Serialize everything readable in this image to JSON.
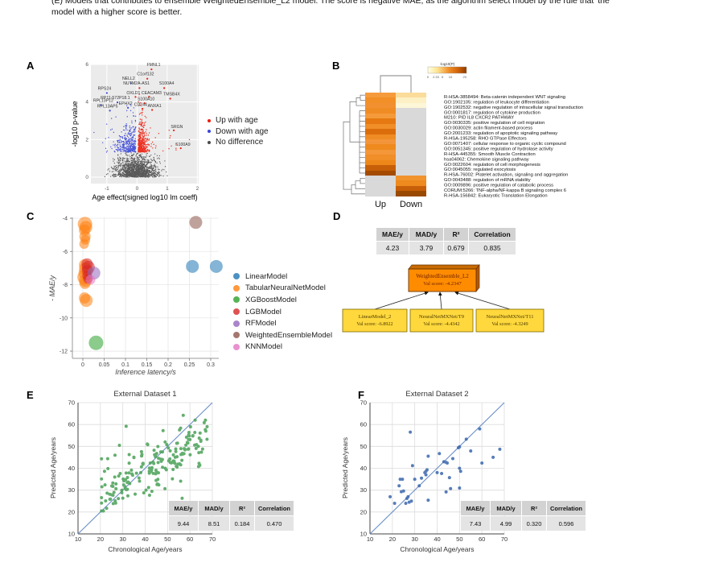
{
  "caption": {
    "line1": "(E) Models that contributes to ensemble WeightedEnsemble_L2 model. The score is negative MAE, as the algorithm select model by the rule that 'the",
    "line2": "model with a higher score is better."
  },
  "figure_labels": {
    "a": "A",
    "b": "B",
    "c": "C",
    "d": "D",
    "e": "E",
    "f": "F"
  },
  "chart_data": [
    {
      "id": "A",
      "type": "scatter",
      "subtype": "volcano",
      "xlabel": "Age effect(signed log10 lm coeff)",
      "ylabel": "-log10 p-value",
      "xticks": [
        -1,
        0,
        1,
        2
      ],
      "yticks": [
        6,
        4,
        2,
        0
      ],
      "xlim": [
        -1.53,
        2.05
      ],
      "ylim": [
        -0.34,
        6
      ],
      "colors": {
        "up": "#ed1d0e",
        "down": "#3b47d6",
        "none": "#4a4a4a",
        "bg": "#ebebeb"
      },
      "legend": [
        {
          "label": "Up with age",
          "key": "up"
        },
        {
          "label": "Down with age",
          "key": "down"
        },
        {
          "label": "No difference",
          "key": "none"
        }
      ],
      "cloud": {
        "seed": 42,
        "grey_n": 1500,
        "up_n": 430,
        "down_n": 380,
        "threshold": 1.33
      },
      "genes": [
        {
          "name": "FMNL1",
          "lx": 0.55,
          "ly": 5.92,
          "px": 0.48,
          "py": 5.74,
          "g": "up"
        },
        {
          "name": "C1orf132",
          "lx": 0.28,
          "ly": 5.42,
          "px": 0.34,
          "py": 5.24,
          "g": "up"
        },
        {
          "name": "NELL2",
          "lx": -0.28,
          "ly": 5.18,
          "px": -0.2,
          "py": 5.0,
          "g": "down"
        },
        {
          "name": "NUTM2A-AS1",
          "lx": -0.02,
          "ly": 4.92,
          "px": 0.08,
          "py": 4.74,
          "g": "up"
        },
        {
          "name": "S100A4",
          "lx": 0.98,
          "ly": 4.92,
          "px": 0.9,
          "py": 4.74,
          "g": "up"
        },
        {
          "name": "RPS24",
          "lx": -1.08,
          "ly": 4.65,
          "px": -1.0,
          "py": 4.48,
          "g": "down"
        },
        {
          "name": "OXLD1",
          "lx": -0.12,
          "ly": 4.42,
          "px": -0.05,
          "py": 4.27,
          "g": "up"
        },
        {
          "name": "CEACAM3",
          "lx": 0.48,
          "ly": 4.42,
          "px": 0.4,
          "py": 4.28,
          "g": "up"
        },
        {
          "name": "TMSB4X",
          "lx": 1.15,
          "ly": 4.35,
          "px": 1.1,
          "py": 4.18,
          "g": "up"
        },
        {
          "name": "RP11-572P18.1",
          "lx": -0.72,
          "ly": 4.15,
          "px": -0.65,
          "py": 3.98,
          "g": "down"
        },
        {
          "name": "S100A10",
          "lx": 0.3,
          "ly": 4.1,
          "px": 0.25,
          "py": 3.94,
          "g": "up"
        },
        {
          "name": "RPL13P12",
          "lx": -1.12,
          "ly": 4.0,
          "px": -1.2,
          "py": 3.84,
          "g": "down"
        },
        {
          "name": "EPHX2",
          "lx": -0.38,
          "ly": 3.85,
          "px": -0.3,
          "py": 3.69,
          "g": "down"
        },
        {
          "name": "CD244",
          "lx": 0.12,
          "ly": 3.8,
          "px": 0.18,
          "py": 3.64,
          "g": "up"
        },
        {
          "name": "ANXA1",
          "lx": 0.58,
          "ly": 3.72,
          "px": 0.5,
          "py": 3.58,
          "g": "up"
        },
        {
          "name": "RPL13AP5",
          "lx": -0.98,
          "ly": 3.7,
          "px": -0.9,
          "py": 3.54,
          "g": "down"
        },
        {
          "name": "SRGN",
          "lx": 1.32,
          "ly": 2.62,
          "px": 1.22,
          "py": 2.49,
          "g": "up"
        },
        {
          "name": "S100A9",
          "lx": 1.52,
          "ly": 1.68,
          "px": 1.45,
          "py": 1.54,
          "g": "up"
        }
      ]
    },
    {
      "id": "B",
      "type": "heatmap",
      "col_labels": [
        "Up",
        "Down"
      ],
      "legend_title": "-log10(P)",
      "legend_ticks": [
        "0",
        "2.33",
        "5",
        "10",
        "20"
      ],
      "na_color": "#d9d9d9",
      "rows": [
        {
          "name": "R-HSA-3858494: Beta-catenin independent WNT signaling",
          "up": "#f59b3c",
          "down": "#fbdc9a"
        },
        {
          "name": "GO:1902105: regulation of leukocyte differentiation",
          "up": "#f28f27",
          "down": "#fdf0c4"
        },
        {
          "name": "GO:1902532: negative regulation of intracellular signal transduction",
          "up": "#f29030",
          "down": "#fdf6d7"
        },
        {
          "name": "GO:0001817: regulation of cytokine production",
          "up": "#f08c24",
          "down": "#d9d9d9"
        },
        {
          "name": "M210: PID IL8 CXCR2 PATHWAY",
          "up": "#f49a3a",
          "down": "#d9d9d9"
        },
        {
          "name": "GO:0030335: positive regulation of cell migration",
          "up": "#e67911",
          "down": "#d9d9d9"
        },
        {
          "name": "GO:0030029: actin filament-based process",
          "up": "#f08e28",
          "down": "#d9d9d9"
        },
        {
          "name": "GO:2001233: regulation of apoptotic signaling pathway",
          "up": "#db6e0b",
          "down": "#d9d9d9"
        },
        {
          "name": "R-HSA-195258: RHO GTPase Effectors",
          "up": "#ef8c24",
          "down": "#d9d9d9"
        },
        {
          "name": "GO:0071407: cellular response to organic cyclic compound",
          "up": "#f2953a",
          "down": "#d9d9d9"
        },
        {
          "name": "GO:0051345: positive regulation of hydrolase activity",
          "up": "#ee8a1e",
          "down": "#d9d9d9"
        },
        {
          "name": "R-HSA-445355: Smooth Muscle Contraction",
          "up": "#f39739",
          "down": "#d9d9d9"
        },
        {
          "name": "hsa04062: Chemokine signaling pathway",
          "up": "#f08e28",
          "down": "#d9d9d9"
        },
        {
          "name": "GO:0022604: regulation of cell morphogenesis",
          "up": "#ed8719",
          "down": "#d9d9d9"
        },
        {
          "name": "GO:0045055: regulated exocytosis",
          "up": "#c65f08",
          "down": "#d9d9d9"
        },
        {
          "name": "R-HSA-76002: Platelet activation, signaling and aggregation",
          "up": "#a54b00",
          "down": "#d9d9d9"
        },
        {
          "name": "GO:0043488: regulation of mRNA stability",
          "up": "#d9d9d9",
          "down": "#f0932c"
        },
        {
          "name": "GO:0009896: positive regulation of catabolic process",
          "up": "#d9d9d9",
          "down": "#ee8a1e"
        },
        {
          "name": "CORUM:5266: TNF-alpha/NF-kappa B signaling complex 6",
          "up": "#d9d9d9",
          "down": "#c65f08"
        },
        {
          "name": "R-HSA-156842: Eukaryotic Translation Elongation",
          "up": "#d9d9d9",
          "down": "#9a4a00"
        }
      ]
    },
    {
      "id": "C",
      "type": "scatter",
      "xlabel": "Inference latency/s",
      "ylabel": "- MAE/y",
      "xticks": [
        "0",
        "0.05",
        "0.1",
        "0.15",
        "0.2",
        "0.25",
        "0.3"
      ],
      "yticks": [
        -4,
        -6,
        -8,
        -10,
        -12
      ],
      "xlim": [
        -0.025,
        0.32
      ],
      "ylim": [
        -12.45,
        -3.9
      ],
      "models": [
        {
          "label": "LinearModel",
          "color": "#1f77b4"
        },
        {
          "label": "TabularNeuralNetModel",
          "color": "#ff7f0e"
        },
        {
          "label": "XGBoostModel",
          "color": "#2ca02c"
        },
        {
          "label": "LGBModel",
          "color": "#d62728"
        },
        {
          "label": "RFModel",
          "color": "#9467bd"
        },
        {
          "label": "WeightedEnsembleModel",
          "color": "#8c564b"
        },
        {
          "label": "KNNModel",
          "color": "#e377c2"
        }
      ],
      "points": [
        {
          "m": 1,
          "x": 0.005,
          "y": -4.35,
          "r": 9
        },
        {
          "m": 1,
          "x": 0.007,
          "y": -4.55,
          "r": 8
        },
        {
          "m": 1,
          "x": 0.004,
          "y": -4.72,
          "r": 7
        },
        {
          "m": 1,
          "x": 0.005,
          "y": -5.1,
          "r": 7
        },
        {
          "m": 1,
          "x": 0.006,
          "y": -5.3,
          "r": 6
        },
        {
          "m": 1,
          "x": 0.003,
          "y": -5.55,
          "r": 6
        },
        {
          "m": 1,
          "x": 0.004,
          "y": -6.8,
          "r": 7
        },
        {
          "m": 1,
          "x": 0.006,
          "y": -7.05,
          "r": 8
        },
        {
          "m": 1,
          "x": 0.005,
          "y": -7.3,
          "r": 8
        },
        {
          "m": 1,
          "x": 0.004,
          "y": -7.55,
          "r": 9
        },
        {
          "m": 1,
          "x": 0.006,
          "y": -7.75,
          "r": 8
        },
        {
          "m": 1,
          "x": 0.005,
          "y": -7.92,
          "r": 7
        },
        {
          "m": 1,
          "x": 0.004,
          "y": -8.8,
          "r": 7
        },
        {
          "m": 1,
          "x": 0.008,
          "y": -8.95,
          "r": 8
        },
        {
          "m": 3,
          "x": 0.01,
          "y": -6.75,
          "r": 7
        },
        {
          "m": 3,
          "x": 0.013,
          "y": -6.95,
          "r": 8
        },
        {
          "m": 3,
          "x": 0.011,
          "y": -7.15,
          "r": 7
        },
        {
          "m": 3,
          "x": 0.01,
          "y": -7.45,
          "r": 6
        },
        {
          "m": 3,
          "x": 0.012,
          "y": -7.65,
          "r": 6
        },
        {
          "m": 4,
          "x": 0.026,
          "y": -7.3,
          "r": 8
        },
        {
          "m": 6,
          "x": 0.018,
          "y": -7.7,
          "r": 6
        },
        {
          "m": 2,
          "x": 0.031,
          "y": -11.5,
          "r": 9
        },
        {
          "m": 0,
          "x": 0.257,
          "y": -6.9,
          "r": 8
        },
        {
          "m": 0,
          "x": 0.313,
          "y": -6.9,
          "r": 8
        },
        {
          "m": 5,
          "x": 0.265,
          "y": -4.25,
          "r": 8
        }
      ]
    },
    {
      "id": "D",
      "type": "table",
      "table": {
        "headers": [
          "MAE/y",
          "MAD/y",
          "R²",
          "Correlation"
        ],
        "values": [
          "4.23",
          "3.79",
          "0.679",
          "0.835"
        ]
      },
      "tree": {
        "root": {
          "name": "WeightedEnsemble_L2",
          "score": "Val score: -4.2347",
          "fill": "#ff8c00"
        },
        "children": [
          {
            "name": "LinearModel_2",
            "score": "Val score: -6.8922",
            "fill": "#ffd83d"
          },
          {
            "name": "NeuralNetMXNet/T9",
            "score": "Val score: -4.4342",
            "fill": "#ffd83d"
          },
          {
            "name": "NeuralNetMXNet/T11",
            "score": "Val score: -4.3249",
            "fill": "#ffd83d"
          }
        ]
      }
    },
    {
      "id": "E",
      "type": "scatter",
      "title": "External Dataset 1",
      "xlabel": "Chronological Age/years",
      "ylabel": "Predicted Age/years",
      "ticks": [
        10,
        20,
        30,
        40,
        50,
        60,
        70
      ],
      "xlim": [
        10,
        70
      ],
      "ylim": [
        10,
        70
      ],
      "point_color": "#4aa057",
      "line_color": "#6a8fc8",
      "table": {
        "headers": [
          "MAE/y",
          "MAD/y",
          "R²",
          "Correlation"
        ],
        "values": [
          "9.44",
          "8.51",
          "0.184",
          "0.470"
        ]
      },
      "scatter_gen": {
        "seed": 7,
        "n": 190,
        "slope": 0.46,
        "intercept": 21.0,
        "noise": 6.0,
        "outliers": [
          [
            57,
            64.2
          ],
          [
            31.5,
            59.2
          ],
          [
            28.5,
            50.5
          ],
          [
            56.5,
            26.3
          ],
          [
            48,
            57.2
          ]
        ]
      }
    },
    {
      "id": "F",
      "type": "scatter",
      "title": "External Dataset 2",
      "xlabel": "Chronological Age/years",
      "ylabel": "Predicted Age/years",
      "ticks": [
        10,
        20,
        30,
        40,
        50,
        60,
        70
      ],
      "xlim": [
        10,
        70
      ],
      "ylim": [
        10,
        70
      ],
      "point_color": "#3a67ad",
      "line_color": "#6a8fc8",
      "table": {
        "headers": [
          "MAE/y",
          "MAD/y",
          "R²",
          "Correlation"
        ],
        "values": [
          "7.43",
          "4.99",
          "0.320",
          "0.596"
        ]
      },
      "points": [
        [
          19,
          27
        ],
        [
          21,
          24
        ],
        [
          23,
          32
        ],
        [
          23.5,
          35
        ],
        [
          24.5,
          35
        ],
        [
          24,
          29.3
        ],
        [
          25,
          29.6
        ],
        [
          26,
          24
        ],
        [
          26.5,
          26.2
        ],
        [
          27,
          27
        ],
        [
          27.5,
          24.5
        ],
        [
          28,
          56.5
        ],
        [
          28.5,
          25
        ],
        [
          29,
          41.2
        ],
        [
          30,
          35
        ],
        [
          32,
          32
        ],
        [
          33,
          35.5
        ],
        [
          34.5,
          38
        ],
        [
          35,
          38.6
        ],
        [
          35,
          37
        ],
        [
          35.5,
          39.3
        ],
        [
          36,
          45.5
        ],
        [
          36,
          25.4
        ],
        [
          40,
          38
        ],
        [
          41,
          46.7
        ],
        [
          42,
          37.6
        ],
        [
          43,
          43
        ],
        [
          44,
          42.7
        ],
        [
          44.5,
          42.4
        ],
        [
          44,
          29.2
        ],
        [
          45.5,
          35.7
        ],
        [
          46,
          30.7
        ],
        [
          47,
          44.4
        ],
        [
          49.5,
          49.4
        ],
        [
          50,
          49.8
        ],
        [
          50,
          40
        ],
        [
          50.5,
          38.6
        ],
        [
          50,
          31
        ],
        [
          53,
          53.3
        ],
        [
          55,
          47.9
        ],
        [
          59,
          58
        ],
        [
          60,
          42.4
        ],
        [
          65,
          45
        ],
        [
          68,
          48.7
        ]
      ]
    }
  ]
}
